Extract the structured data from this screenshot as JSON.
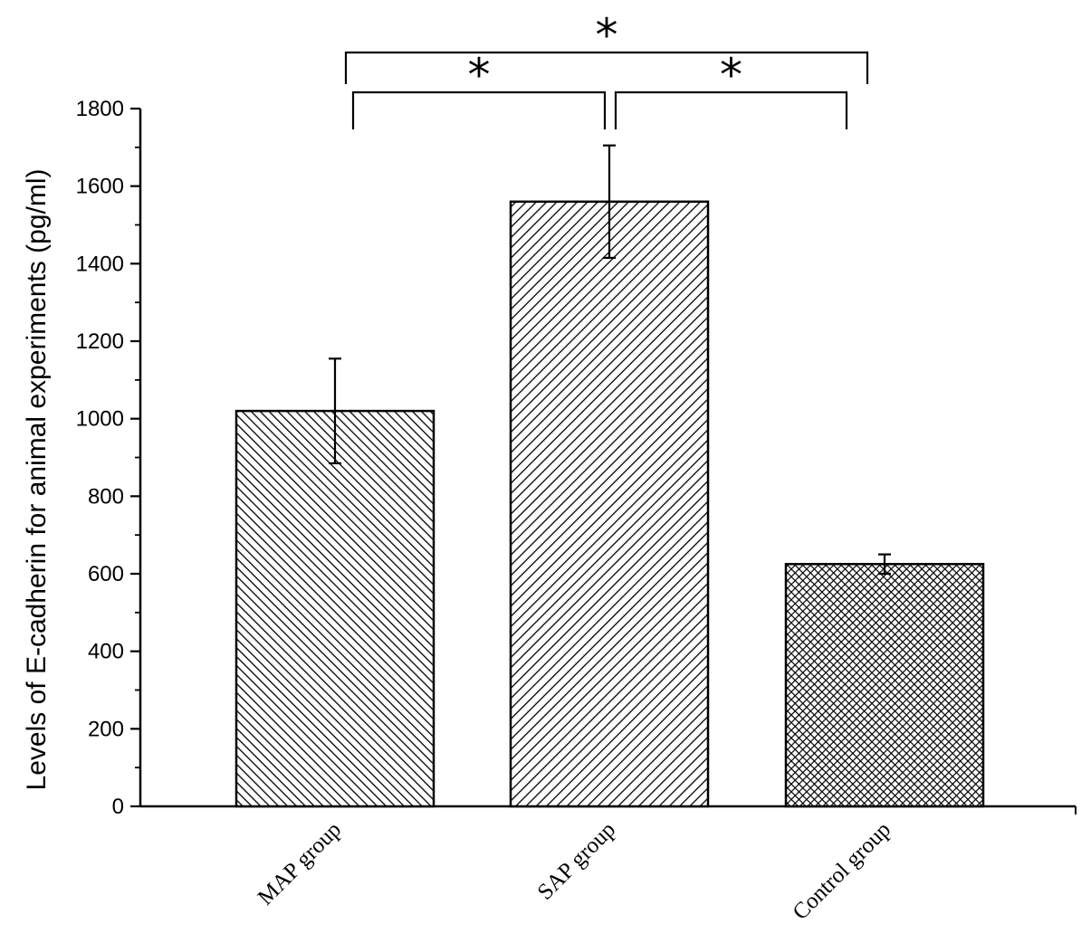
{
  "chart_data": {
    "type": "bar",
    "title": "",
    "xlabel": "",
    "ylabel": "Levels of E-cadherin for animal experiments (pg/ml)",
    "categories": [
      "MAP group",
      "SAP group",
      "Control group"
    ],
    "values": [
      1020,
      1560,
      625
    ],
    "error": [
      135,
      145,
      25
    ],
    "patterns": [
      "diag-dense",
      "diag",
      "crosshatch"
    ],
    "ylim": [
      0,
      1800
    ],
    "yticks": [
      0,
      200,
      400,
      600,
      800,
      1000,
      1200,
      1400,
      1600,
      1800
    ],
    "ytick_labels": [
      "0",
      "200",
      "400",
      "600",
      "800",
      "1000",
      "1200",
      "1400",
      "1600",
      "1800"
    ],
    "grid": false,
    "annotations": [
      {
        "type": "significance",
        "from": 0,
        "to": 1,
        "label": "*",
        "level": 1
      },
      {
        "type": "significance",
        "from": 1,
        "to": 2,
        "label": "*",
        "level": 1
      },
      {
        "type": "significance",
        "from": 0,
        "to": 2,
        "label": "*",
        "level": 2
      }
    ],
    "colors": {
      "bar_fill": "#ffffff",
      "stroke": "#000000"
    }
  }
}
